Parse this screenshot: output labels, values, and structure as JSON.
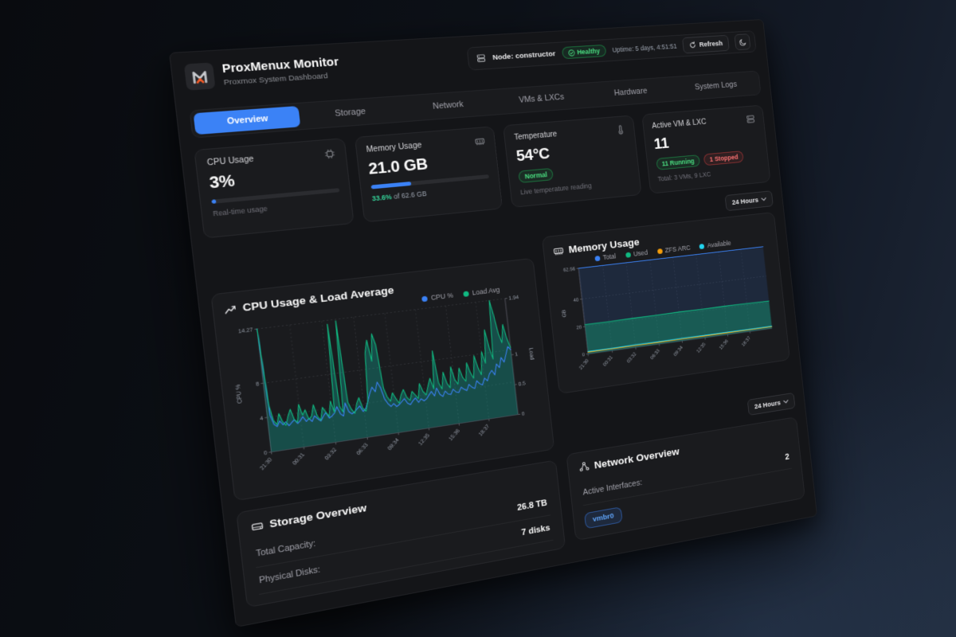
{
  "topbar": {
    "node_label": "Node: constructor",
    "health_label": "Healthy",
    "uptime": "Uptime: 5 days, 4:51:51",
    "refresh_label": "Refresh"
  },
  "header": {
    "title": "ProxMenux Monitor",
    "subtitle": "Proxmox System Dashboard"
  },
  "tabs": [
    {
      "label": "Overview"
    },
    {
      "label": "Storage"
    },
    {
      "label": "Network"
    },
    {
      "label": "VMs & LXCs"
    },
    {
      "label": "Hardware"
    },
    {
      "label": "System Logs"
    }
  ],
  "active_tab": "Overview",
  "stats": {
    "cpu": {
      "title": "CPU Usage",
      "value": "3%",
      "percent": 3,
      "subtitle": "Real-time usage"
    },
    "memory": {
      "title": "Memory Usage",
      "value": "21.0 GB",
      "percent": 33.6,
      "caption_value": "33.6%",
      "caption_suffix": " of 62.6 GB"
    },
    "temperature": {
      "title": "Temperature",
      "value": "54°C",
      "status": "Normal",
      "subtitle": "Live temperature reading"
    },
    "vms": {
      "title": "Active VM & LXC",
      "value": "11",
      "running": "11 Running",
      "stopped": "1 Stopped",
      "subtitle": "Total: 3 VMs, 9 LXC"
    }
  },
  "time_range": "24 Hours",
  "chart_data": [
    {
      "type": "line",
      "title": "CPU Usage & Load Average",
      "x_ticks": [
        "21:30",
        "00:31",
        "03:32",
        "06:33",
        "09:34",
        "12:35",
        "15:36",
        "18:37"
      ],
      "y_left": {
        "label": "CPU %",
        "ticks": [
          "0",
          "4",
          "8",
          "14.27"
        ],
        "tick_values": [
          0,
          4,
          8,
          14.27
        ],
        "max": 14.27
      },
      "y_right": {
        "label": "Load",
        "ticks": [
          "0",
          "0.5",
          "1",
          "1.94"
        ],
        "tick_values": [
          0,
          0.5,
          1,
          1.94
        ],
        "max": 1.94
      },
      "legend": [
        {
          "name": "CPU %",
          "color": "#3b82f6"
        },
        {
          "name": "Load Avg",
          "color": "#10b981"
        }
      ],
      "series": [
        {
          "name": "CPU %",
          "axis": "left",
          "color": "#3b82f6",
          "values": [
            14.27,
            4.2,
            3.1,
            2.8,
            3.4,
            2.9,
            3.2,
            2.7,
            3.0,
            3.3,
            2.8,
            3.1,
            3.5,
            2.9,
            3.2,
            2.8,
            3.4,
            3.0,
            2.7,
            3.2,
            3.6,
            2.9,
            3.1,
            3.4,
            4.1,
            3.2,
            2.9,
            4.4,
            3.3,
            3.0,
            3.2,
            3.5,
            3.8,
            3.1,
            3.4,
            4.2,
            5.1,
            5.8,
            5.2,
            6.3,
            5.6,
            4.2,
            3.6,
            3.2,
            3.5,
            3.1,
            3.3,
            3.6,
            3.9,
            3.3,
            3.1,
            3.5,
            3.8,
            3.2,
            3.6,
            3.3,
            3.5,
            3.9,
            4.3,
            3.7,
            4.6,
            3.8,
            3.5,
            4.1,
            3.7,
            3.6,
            4.2,
            3.8,
            3.7,
            4.3,
            4.0,
            3.8,
            4.5,
            4.1,
            3.9,
            4.8,
            4.4,
            4.2,
            5.0,
            4.6,
            5.4,
            5.8,
            5.2,
            6.5,
            6.0,
            7.2,
            6.6,
            7.5,
            8.4,
            8.0
          ]
        },
        {
          "name": "Load Avg",
          "axis": "right",
          "color": "#10b981",
          "fill": "rgba(20,184,166,0.32)",
          "values": [
            1.94,
            0.72,
            0.48,
            0.41,
            0.58,
            0.44,
            0.38,
            0.52,
            0.62,
            0.45,
            0.4,
            0.68,
            0.5,
            0.58,
            0.42,
            0.47,
            0.64,
            0.45,
            0.38,
            0.58,
            0.5,
            0.42,
            0.66,
            0.47,
            1.88,
            0.55,
            0.46,
            1.92,
            0.6,
            0.48,
            0.41,
            0.56,
            0.65,
            0.47,
            0.42,
            0.58,
            1.35,
            1.55,
            1.2,
            1.64,
            1.46,
            0.75,
            0.6,
            0.52,
            0.65,
            0.55,
            0.47,
            0.6,
            0.68,
            0.54,
            0.49,
            0.63,
            0.57,
            0.5,
            0.74,
            0.6,
            0.54,
            0.68,
            0.8,
            0.62,
            1.24,
            0.7,
            0.6,
            0.87,
            0.68,
            0.6,
            0.94,
            0.72,
            0.64,
            0.9,
            0.74,
            0.67,
            0.97,
            0.8,
            0.7,
            1.07,
            0.87,
            0.74,
            1.12,
            0.92,
            1.47,
            1.17,
            0.97,
            1.94,
            1.7,
            1.38,
            1.22,
            1.52,
            1.28,
            1.12
          ]
        }
      ]
    },
    {
      "type": "area",
      "title": "Memory Usage",
      "x_ticks": [
        "21:30",
        "00:31",
        "03:32",
        "06:33",
        "09:34",
        "12:35",
        "15:36",
        "18:37"
      ],
      "y_left": {
        "label": "GB",
        "ticks": [
          "0",
          "20",
          "40",
          "62.56"
        ],
        "tick_values": [
          0,
          20,
          40,
          62.56
        ],
        "max": 62.56
      },
      "legend": [
        {
          "name": "Total",
          "color": "#3b82f6"
        },
        {
          "name": "Used",
          "color": "#10b981"
        },
        {
          "name": "ZFS ARC",
          "color": "#f59e0b"
        },
        {
          "name": "Available",
          "color": "#22d3ee"
        }
      ],
      "series": [
        {
          "name": "Total",
          "axis": "left",
          "color": "#3b82f6",
          "fill": "rgba(59,130,246,0.14)",
          "values": [
            62.56,
            62.56,
            62.56,
            62.56,
            62.56,
            62.56,
            62.56,
            62.56,
            62.56
          ]
        },
        {
          "name": "Used",
          "axis": "left",
          "color": "#10b981",
          "fill": "rgba(16,185,129,0.35)",
          "values": [
            21.4,
            21.2,
            21.5,
            21.3,
            21.6,
            21.4,
            21.5,
            21.2,
            21.0
          ]
        },
        {
          "name": "ZFS ARC",
          "axis": "left",
          "color": "#f59e0b",
          "values": [
            1.3,
            1.3,
            1.4,
            1.3,
            1.4,
            1.3,
            1.3,
            1.2,
            1.2
          ]
        },
        {
          "name": "Available",
          "axis": "left",
          "color": "#22d3ee",
          "values": [
            1.8,
            1.7,
            1.9,
            1.8,
            1.9,
            1.8,
            1.8,
            1.7,
            1.6
          ]
        }
      ]
    }
  ],
  "storage": {
    "title": "Storage Overview",
    "rows": [
      {
        "label": "Total Capacity:",
        "value": "26.8 TB"
      },
      {
        "label": "Physical Disks:",
        "value": "7 disks"
      }
    ]
  },
  "network": {
    "title": "Network Overview",
    "rows": [
      {
        "label": "Active Interfaces:",
        "value": "2"
      }
    ],
    "interface_badge": "vmbr0"
  },
  "colors": {
    "accent": "#3b82f6",
    "green": "#10b981",
    "cyan": "#22d3ee",
    "orange": "#f59e0b",
    "red": "#f87171"
  }
}
